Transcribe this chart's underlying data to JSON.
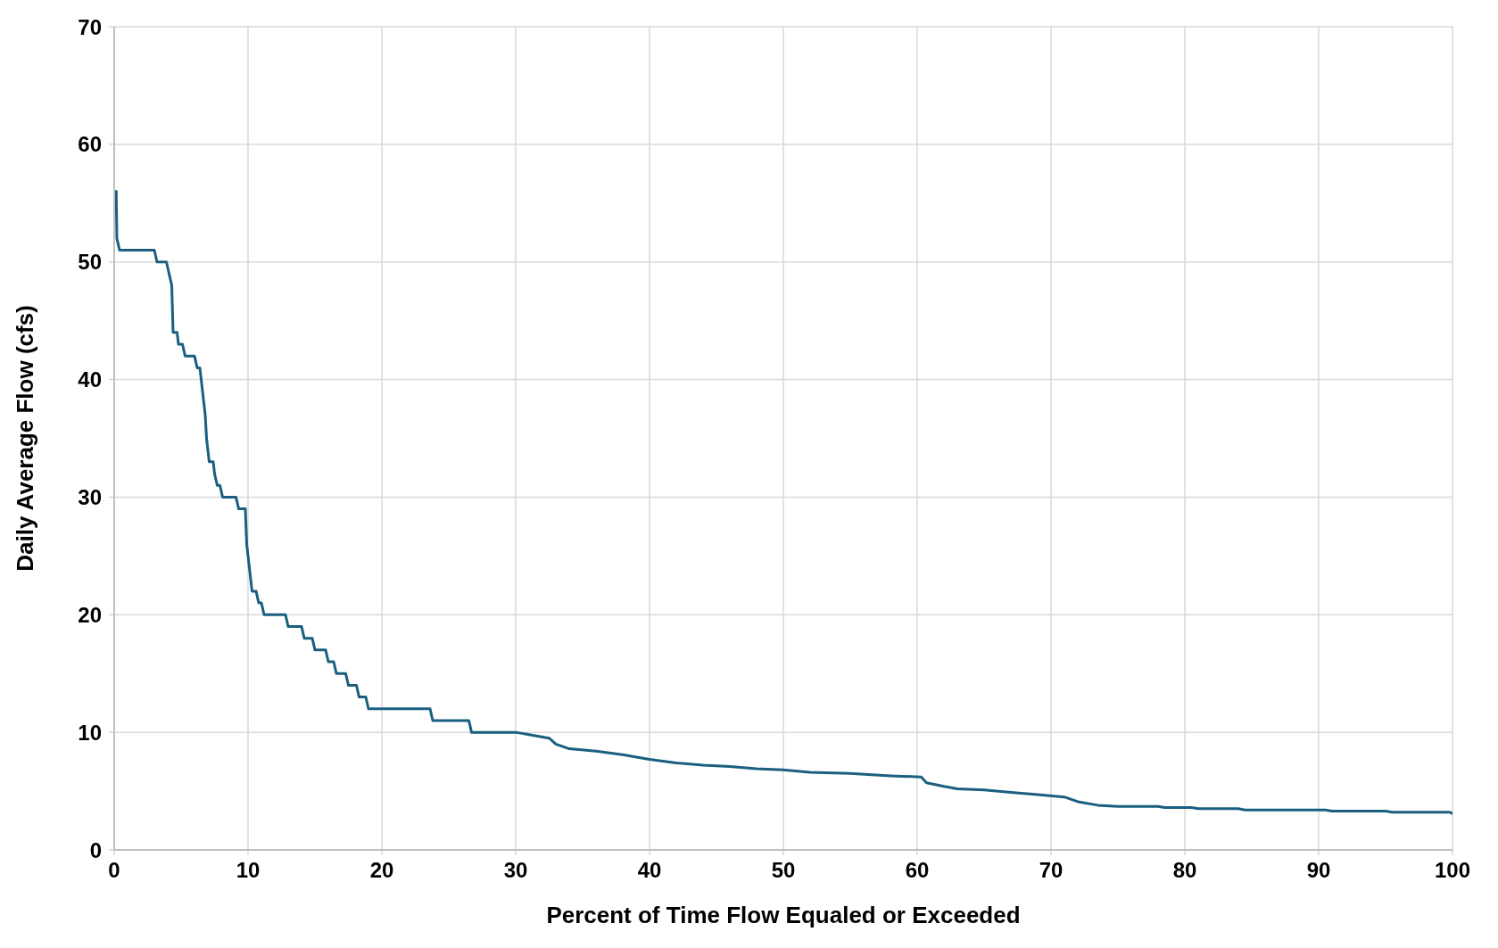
{
  "chart_data": {
    "type": "line",
    "xlabel": "Percent of Time Flow Equaled or Exceeded",
    "ylabel": "Daily Average Flow (cfs)",
    "x": [
      0.15,
      0.2,
      0.4,
      3.0,
      3.2,
      3.9,
      4.1,
      4.3,
      4.4,
      4.7,
      4.8,
      5.1,
      5.3,
      6.0,
      6.2,
      6.4,
      6.6,
      6.8,
      6.9,
      7.1,
      7.4,
      7.5,
      7.7,
      7.9,
      8.1,
      9.1,
      9.3,
      9.8,
      9.9,
      10.1,
      10.3,
      10.6,
      10.8,
      11.0,
      11.2,
      12.8,
      13.0,
      14.0,
      14.2,
      14.8,
      15.0,
      15.8,
      16.0,
      16.4,
      16.6,
      17.3,
      17.5,
      18.1,
      18.3,
      18.8,
      19.0,
      23.6,
      23.8,
      26.5,
      26.7,
      30,
      31,
      32.5,
      33,
      34,
      36,
      38,
      40,
      42,
      44,
      46,
      48,
      50,
      52,
      55,
      58,
      60.3,
      60.7,
      62,
      63,
      65,
      67,
      69,
      71,
      72,
      73.5,
      75,
      78,
      78.5,
      80.5,
      81,
      84,
      84.5,
      90.5,
      91,
      95,
      95.5,
      99.8,
      100
    ],
    "series": [
      {
        "color": "#1a5f80",
        "values": [
          56,
          52,
          51,
          51,
          50,
          50,
          49,
          48,
          44,
          44,
          43,
          43,
          42,
          42,
          41,
          41,
          39,
          37,
          35,
          33,
          33,
          32,
          31,
          31,
          30,
          30,
          29,
          29,
          26,
          24,
          22,
          22,
          21,
          21,
          20,
          20,
          19,
          19,
          18,
          18,
          17,
          17,
          16,
          16,
          15,
          15,
          14,
          14,
          13,
          13,
          12,
          12,
          11,
          11,
          10,
          10,
          9.8,
          9.5,
          9.0,
          8.6,
          8.4,
          8.1,
          7.7,
          7.4,
          7.2,
          7.1,
          6.9,
          6.8,
          6.6,
          6.5,
          6.3,
          6.2,
          5.7,
          5.4,
          5.2,
          5.1,
          4.9,
          4.7,
          4.5,
          4.1,
          3.8,
          3.7,
          3.7,
          3.6,
          3.6,
          3.5,
          3.5,
          3.4,
          3.4,
          3.3,
          3.3,
          3.2,
          3.2,
          3.1
        ]
      }
    ],
    "xlim": [
      0,
      100
    ],
    "xticks": [
      0,
      10,
      20,
      30,
      40,
      50,
      60,
      70,
      80,
      90,
      100
    ],
    "ylim": [
      0,
      70
    ],
    "yticks": [
      0,
      10,
      20,
      30,
      40,
      50,
      60,
      70
    ],
    "grid": true,
    "legend": false,
    "marker": "none",
    "line_style": "solid"
  }
}
